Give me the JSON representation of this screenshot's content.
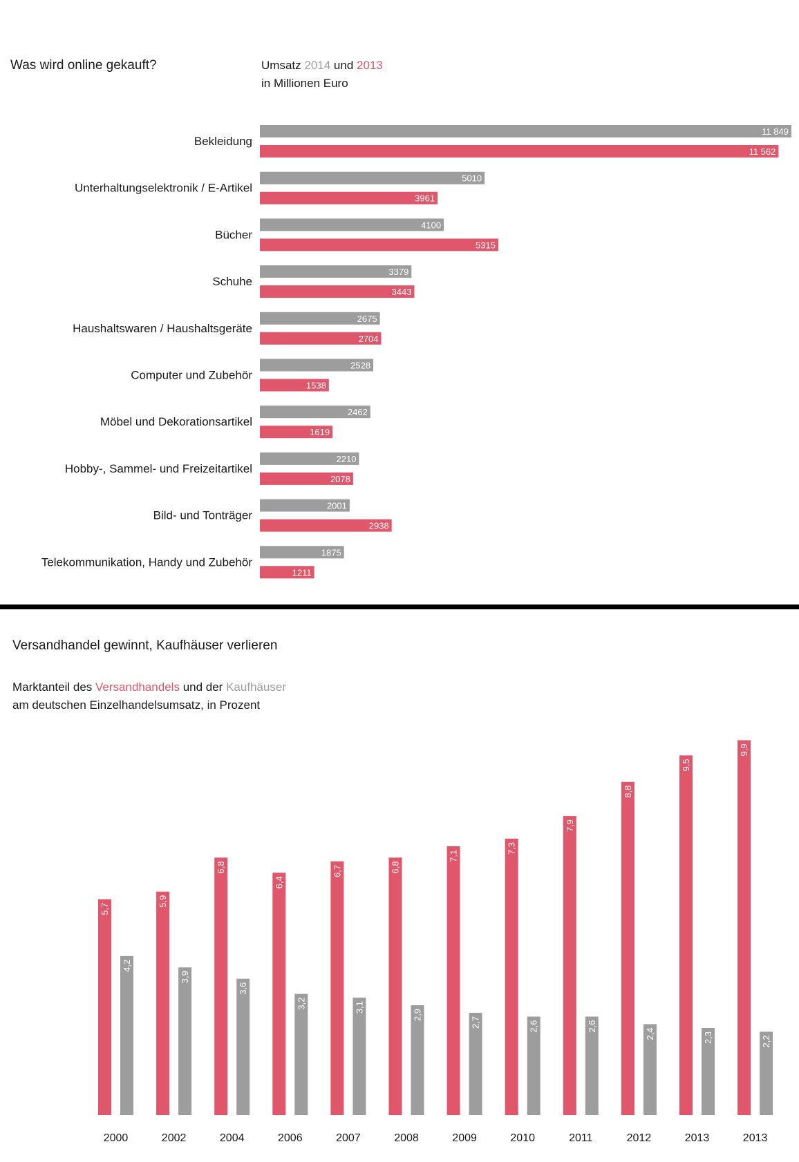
{
  "colors": {
    "gray": "#9d9d9d",
    "red": "#e0566a"
  },
  "top": {
    "title": "Was wird online gekauft?",
    "subtitle": {
      "prefix": "Umsatz",
      "year_a": "2014",
      "mid": "und",
      "year_b": "2013",
      "line2": "in Millionen Euro"
    }
  },
  "bottom": {
    "title": "Versandhandel gewinnt, Kaufhäuser verlieren",
    "subtitle": {
      "p1": "Marktanteil des",
      "red_word": "Versandhandels",
      "p2": "und der",
      "gray_word": "Kaufhäuser",
      "line2": "am deutschen Einzelhandelsumsatz, in Prozent"
    }
  },
  "chart_data": [
    {
      "type": "bar",
      "orientation": "horizontal",
      "title": "Was wird online gekauft?",
      "subtitle": "Umsatz 2014 und 2013 in Millionen Euro",
      "categories": [
        "Bekleidung",
        "Unterhaltungselektronik / E-Artikel",
        "Bücher",
        "Schuhe",
        "Haushaltswaren / Haushaltsgeräte",
        "Computer und Zubehör",
        "Möbel und Dekorationsartikel",
        "Hobby-, Sammel- und Freizeitartikel",
        "Bild- und Tonträger",
        "Telekommunikation, Handy und Zubehör"
      ],
      "series": [
        {
          "name": "2014",
          "color": "#9d9d9d",
          "values": [
            11849,
            5010,
            4100,
            3379,
            2675,
            2528,
            2462,
            2210,
            2001,
            1875
          ],
          "labels": [
            "11 849",
            "5010",
            "4100",
            "3379",
            "2675",
            "2528",
            "2462",
            "2210",
            "2001",
            "1875"
          ]
        },
        {
          "name": "2013",
          "color": "#e0566a",
          "values": [
            11562,
            3961,
            5315,
            3443,
            2704,
            1538,
            1619,
            2078,
            2938,
            1211
          ],
          "labels": [
            "11 562",
            "3961",
            "5315",
            "3443",
            "2704",
            "1538",
            "1619",
            "2078",
            "2938",
            "1211"
          ]
        }
      ],
      "xlim": [
        0,
        11849
      ]
    },
    {
      "type": "bar",
      "orientation": "vertical",
      "title": "Versandhandel gewinnt, Kaufhäuser verlieren",
      "subtitle": "Marktanteil des Versandhandels und der Kaufhäuser am deutschen Einzelhandelsumsatz, in Prozent",
      "categories": [
        "2000",
        "2002",
        "2004",
        "2006",
        "2007",
        "2008",
        "2009",
        "2010",
        "2011",
        "2012",
        "2013",
        "2013"
      ],
      "series": [
        {
          "name": "Versandhandels",
          "color": "#e0566a",
          "values": [
            5.7,
            5.9,
            6.8,
            6.4,
            6.7,
            6.8,
            7.1,
            7.3,
            7.9,
            8.8,
            9.5,
            9.9
          ],
          "labels": [
            "5,7",
            "5,9",
            "6,8",
            "6,4",
            "6,7",
            "6,8",
            "7,1",
            "7,3",
            "7,9",
            "8,8",
            "9,5",
            "9,9"
          ]
        },
        {
          "name": "Kaufhäuser",
          "color": "#9d9d9d",
          "values": [
            4.2,
            3.9,
            3.6,
            3.2,
            3.1,
            2.9,
            2.7,
            2.6,
            2.6,
            2.4,
            2.3,
            2.2
          ],
          "labels": [
            "4,2",
            "3,9",
            "3,6",
            "3,2",
            "3,1",
            "2,9",
            "2,7",
            "2,6",
            "2,6",
            "2,4",
            "2,3",
            "2,2"
          ]
        }
      ],
      "ylim": [
        0,
        9.9
      ]
    }
  ]
}
